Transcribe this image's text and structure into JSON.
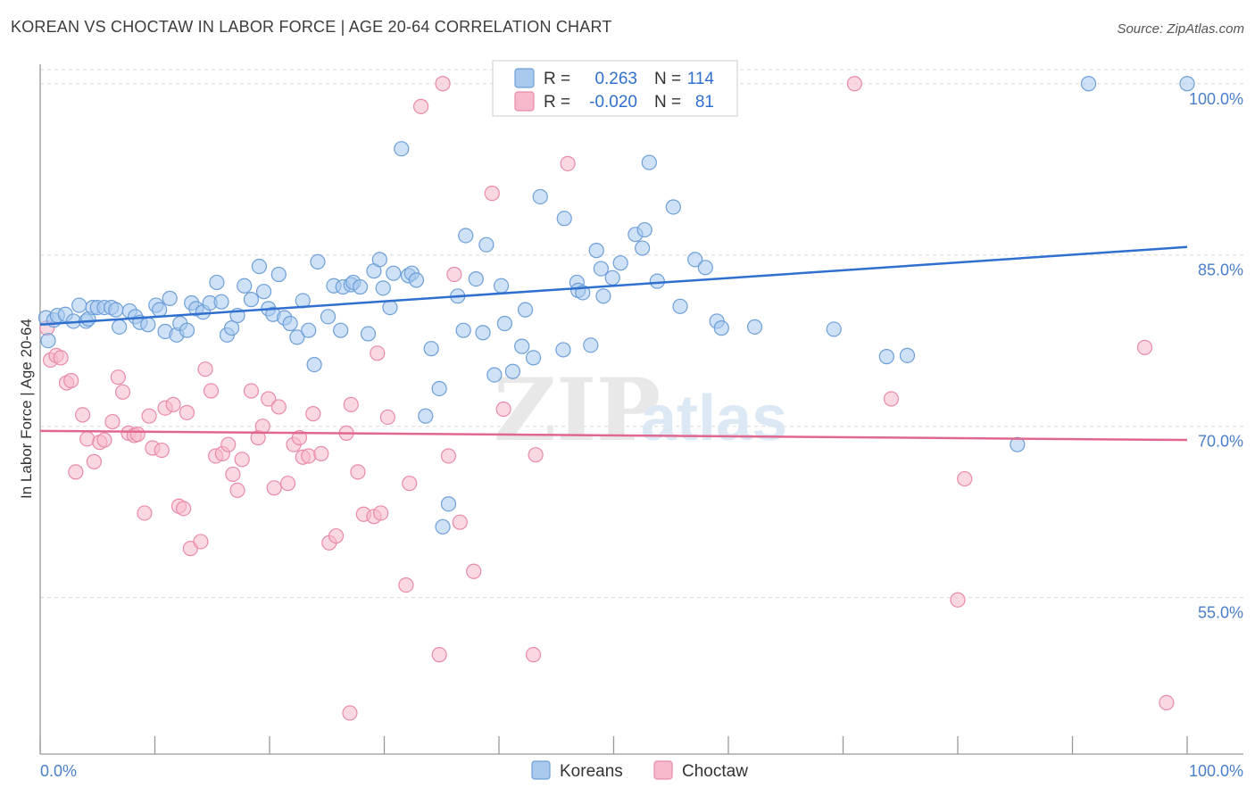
{
  "title": "KOREAN VS CHOCTAW IN LABOR FORCE | AGE 20-64 CORRELATION CHART",
  "source": "Source: ZipAtlas.com",
  "watermark": {
    "zip": "ZIP",
    "atlas": "atlas"
  },
  "colors": {
    "koreans_fill": "#a8c8ee",
    "koreans_stroke": "#6d9fd8",
    "koreans_line": "#2f6fcf",
    "choctaw_fill": "#f6b8ca",
    "choctaw_stroke": "#e98aa9",
    "choctaw_line": "#e0688f",
    "tick_text": "#4a7fc9",
    "grid": "#d9d9d9"
  },
  "legend": {
    "rows": [
      {
        "r_label": "R =",
        "r_value": "0.263",
        "n_label": "N =",
        "n_value": "114"
      },
      {
        "r_label": "R =",
        "r_value": "-0.020",
        "n_label": "N =",
        "n_value": "81"
      }
    ]
  },
  "bottom_legend": [
    "Koreans",
    "Choctaw"
  ],
  "chart_data": {
    "type": "scatter",
    "title": "KOREAN VS CHOCTAW IN LABOR FORCE | AGE 20-64 CORRELATION CHART",
    "xlabel": "",
    "ylabel": "In Labor Force | Age 20-64",
    "xlim": [
      0,
      100
    ],
    "ylim": [
      41.3,
      101.7
    ],
    "x_tick_labels": [
      "0.0%",
      "100.0%"
    ],
    "y_ticks": [
      55,
      70,
      85,
      100
    ],
    "y_tick_labels": [
      "55.0%",
      "70.0%",
      "85.0%",
      "100.0%"
    ],
    "series": [
      {
        "name": "Koreans",
        "r": 0.263,
        "n": 114,
        "trend": {
          "x": [
            0,
            100
          ],
          "y": [
            78.9,
            85.7
          ]
        },
        "points": [
          [
            0.5,
            79.5
          ],
          [
            0.7,
            77.5
          ],
          [
            1.2,
            79.3
          ],
          [
            1.5,
            79.7
          ],
          [
            2.2,
            79.8
          ],
          [
            2.9,
            79.2
          ],
          [
            3.4,
            80.6
          ],
          [
            4.0,
            79.2
          ],
          [
            4.2,
            79.4
          ],
          [
            4.6,
            80.4
          ],
          [
            5.0,
            80.4
          ],
          [
            5.6,
            80.4
          ],
          [
            6.2,
            80.4
          ],
          [
            6.6,
            80.2
          ],
          [
            6.9,
            78.7
          ],
          [
            7.8,
            80.1
          ],
          [
            8.3,
            79.6
          ],
          [
            8.7,
            79.1
          ],
          [
            9.4,
            78.9
          ],
          [
            10.1,
            80.6
          ],
          [
            10.4,
            80.2
          ],
          [
            10.9,
            78.3
          ],
          [
            11.3,
            81.2
          ],
          [
            11.9,
            78.0
          ],
          [
            12.2,
            79.0
          ],
          [
            12.8,
            78.4
          ],
          [
            13.2,
            80.8
          ],
          [
            13.6,
            80.3
          ],
          [
            14.2,
            80.0
          ],
          [
            14.8,
            80.8
          ],
          [
            15.4,
            82.6
          ],
          [
            15.8,
            80.9
          ],
          [
            16.3,
            78.0
          ],
          [
            16.7,
            78.6
          ],
          [
            17.2,
            79.7
          ],
          [
            17.8,
            82.3
          ],
          [
            18.4,
            81.1
          ],
          [
            19.1,
            84.0
          ],
          [
            19.5,
            81.8
          ],
          [
            19.9,
            80.3
          ],
          [
            20.3,
            79.8
          ],
          [
            20.8,
            83.3
          ],
          [
            21.3,
            79.5
          ],
          [
            21.8,
            79.0
          ],
          [
            22.4,
            77.8
          ],
          [
            22.9,
            81.0
          ],
          [
            23.4,
            78.4
          ],
          [
            23.9,
            75.4
          ],
          [
            24.2,
            84.4
          ],
          [
            25.1,
            79.6
          ],
          [
            25.6,
            82.3
          ],
          [
            26.2,
            78.4
          ],
          [
            26.4,
            82.2
          ],
          [
            27.1,
            82.4
          ],
          [
            27.3,
            82.6
          ],
          [
            27.9,
            82.2
          ],
          [
            28.6,
            78.1
          ],
          [
            29.1,
            83.6
          ],
          [
            29.6,
            84.6
          ],
          [
            29.9,
            82.1
          ],
          [
            30.5,
            80.4
          ],
          [
            30.8,
            83.4
          ],
          [
            31.5,
            94.3
          ],
          [
            32.1,
            83.2
          ],
          [
            32.4,
            83.4
          ],
          [
            32.8,
            82.8
          ],
          [
            33.6,
            70.9
          ],
          [
            34.1,
            76.8
          ],
          [
            34.8,
            73.3
          ],
          [
            35.1,
            61.2
          ],
          [
            35.6,
            63.2
          ],
          [
            36.4,
            81.4
          ],
          [
            36.9,
            78.4
          ],
          [
            37.1,
            86.7
          ],
          [
            38.0,
            82.9
          ],
          [
            38.6,
            78.2
          ],
          [
            38.9,
            85.9
          ],
          [
            39.6,
            74.5
          ],
          [
            40.2,
            82.3
          ],
          [
            40.5,
            79.0
          ],
          [
            41.2,
            74.8
          ],
          [
            42.0,
            77.0
          ],
          [
            42.3,
            80.2
          ],
          [
            43.0,
            76.0
          ],
          [
            43.6,
            90.1
          ],
          [
            45.6,
            76.7
          ],
          [
            45.7,
            88.2
          ],
          [
            46.8,
            82.6
          ],
          [
            46.9,
            81.9
          ],
          [
            47.3,
            81.7
          ],
          [
            48.0,
            77.1
          ],
          [
            48.5,
            85.4
          ],
          [
            48.9,
            83.8
          ],
          [
            49.1,
            81.4
          ],
          [
            49.9,
            83.0
          ],
          [
            50.6,
            84.3
          ],
          [
            51.9,
            86.8
          ],
          [
            52.5,
            85.6
          ],
          [
            52.7,
            87.2
          ],
          [
            53.1,
            93.1
          ],
          [
            53.8,
            82.7
          ],
          [
            55.2,
            89.2
          ],
          [
            55.8,
            80.5
          ],
          [
            57.1,
            84.6
          ],
          [
            58.0,
            83.9
          ],
          [
            59.0,
            79.2
          ],
          [
            59.4,
            78.6
          ],
          [
            62.3,
            78.7
          ],
          [
            69.2,
            78.5
          ],
          [
            73.8,
            76.1
          ],
          [
            75.6,
            76.2
          ],
          [
            85.2,
            68.4
          ],
          [
            91.4,
            100.0
          ],
          [
            100.0,
            100.0
          ]
        ]
      },
      {
        "name": "Choctaw",
        "r": -0.02,
        "n": 81,
        "trend": {
          "x": [
            0,
            100
          ],
          "y": [
            69.6,
            68.8
          ]
        },
        "points": [
          [
            0.6,
            78.6
          ],
          [
            0.9,
            75.8
          ],
          [
            1.4,
            76.2
          ],
          [
            1.8,
            76.0
          ],
          [
            2.3,
            73.8
          ],
          [
            2.7,
            74.0
          ],
          [
            3.1,
            66.0
          ],
          [
            3.7,
            71.0
          ],
          [
            4.1,
            68.9
          ],
          [
            4.7,
            66.9
          ],
          [
            5.2,
            68.6
          ],
          [
            5.6,
            68.8
          ],
          [
            6.3,
            70.4
          ],
          [
            6.8,
            74.3
          ],
          [
            7.2,
            73.0
          ],
          [
            7.7,
            69.4
          ],
          [
            8.2,
            69.2
          ],
          [
            8.5,
            69.3
          ],
          [
            9.1,
            62.4
          ],
          [
            9.5,
            70.9
          ],
          [
            9.8,
            68.1
          ],
          [
            10.6,
            67.9
          ],
          [
            10.9,
            71.6
          ],
          [
            11.6,
            71.9
          ],
          [
            12.1,
            63.0
          ],
          [
            12.5,
            62.8
          ],
          [
            12.8,
            71.2
          ],
          [
            13.1,
            59.3
          ],
          [
            14.0,
            59.9
          ],
          [
            14.4,
            75.0
          ],
          [
            14.9,
            73.1
          ],
          [
            15.3,
            67.4
          ],
          [
            15.9,
            67.6
          ],
          [
            16.4,
            68.4
          ],
          [
            16.8,
            65.8
          ],
          [
            17.2,
            64.4
          ],
          [
            17.6,
            67.1
          ],
          [
            18.4,
            73.1
          ],
          [
            19.0,
            69.0
          ],
          [
            19.4,
            70.0
          ],
          [
            19.9,
            72.4
          ],
          [
            20.4,
            64.6
          ],
          [
            20.8,
            71.7
          ],
          [
            21.6,
            65.0
          ],
          [
            22.1,
            68.4
          ],
          [
            22.6,
            69.0
          ],
          [
            22.9,
            67.3
          ],
          [
            23.4,
            67.4
          ],
          [
            23.8,
            71.1
          ],
          [
            24.5,
            67.6
          ],
          [
            25.2,
            59.8
          ],
          [
            25.8,
            60.4
          ],
          [
            26.7,
            69.4
          ],
          [
            27.1,
            71.9
          ],
          [
            27.7,
            66.0
          ],
          [
            28.2,
            62.3
          ],
          [
            29.1,
            62.1
          ],
          [
            29.7,
            62.4
          ],
          [
            29.4,
            76.4
          ],
          [
            30.3,
            70.8
          ],
          [
            31.9,
            56.1
          ],
          [
            32.2,
            65.0
          ],
          [
            33.2,
            98.0
          ],
          [
            34.8,
            50.0
          ],
          [
            35.1,
            100.0
          ],
          [
            35.6,
            67.4
          ],
          [
            36.1,
            83.3
          ],
          [
            36.6,
            61.6
          ],
          [
            37.8,
            57.3
          ],
          [
            39.4,
            90.4
          ],
          [
            40.4,
            71.5
          ],
          [
            43.0,
            50.0
          ],
          [
            43.2,
            67.5
          ],
          [
            46.0,
            93.0
          ],
          [
            71.0,
            100.0
          ],
          [
            74.2,
            72.4
          ],
          [
            80.0,
            54.8
          ],
          [
            80.6,
            65.4
          ],
          [
            96.3,
            76.9
          ],
          [
            98.2,
            45.8
          ],
          [
            27.0,
            44.9
          ]
        ]
      }
    ]
  }
}
